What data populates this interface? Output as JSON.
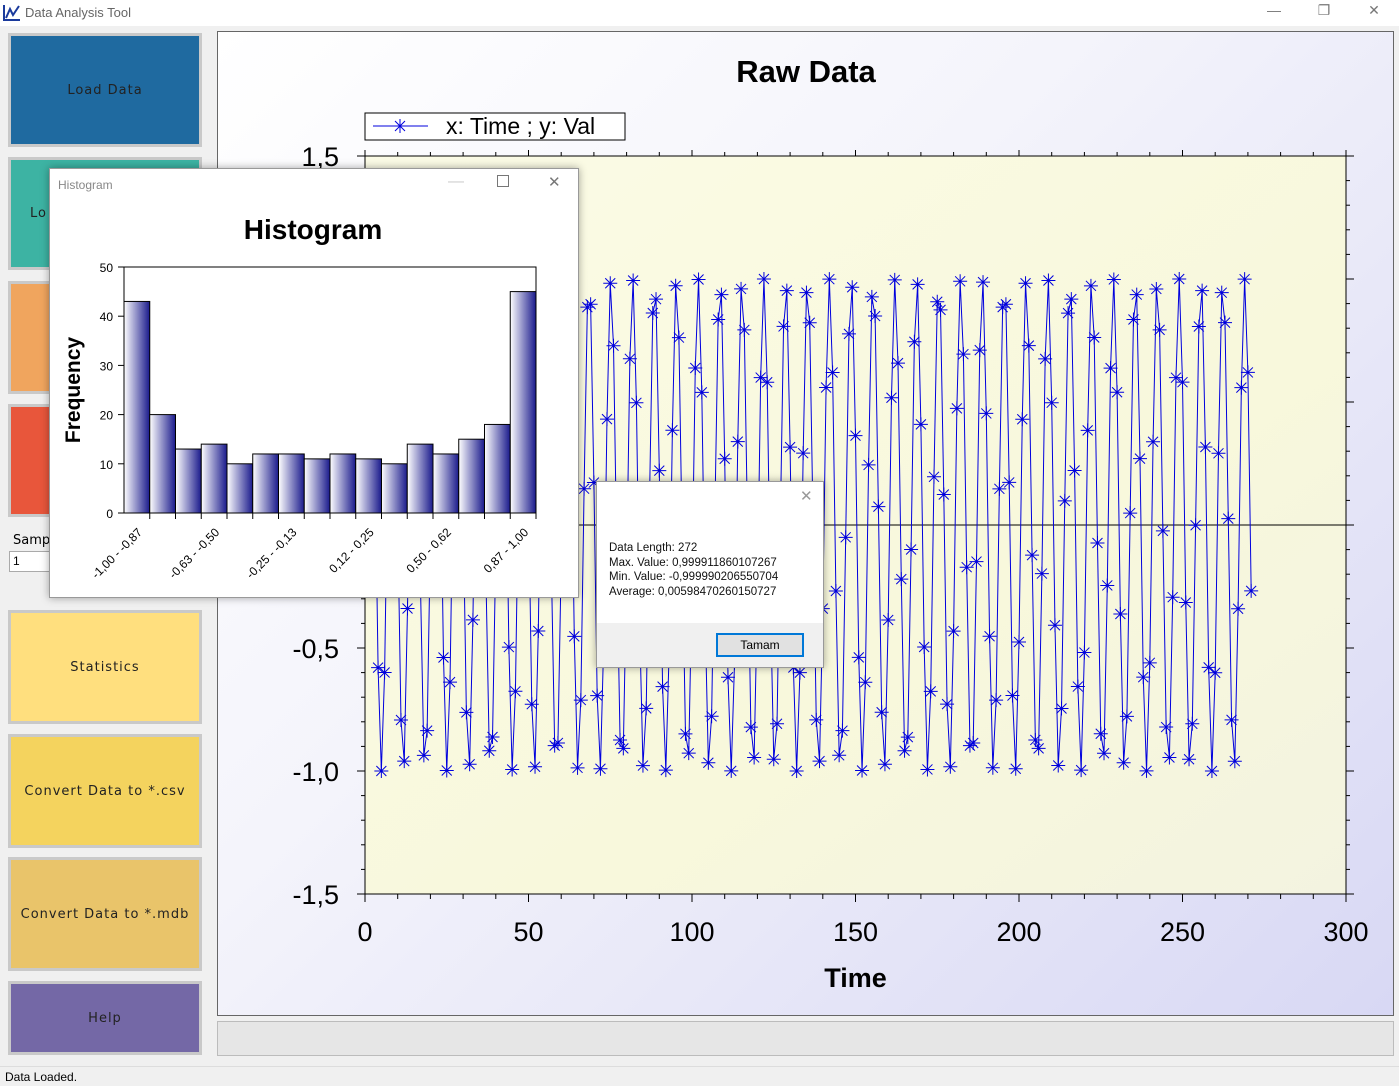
{
  "window": {
    "title": "Data Analysis Tool",
    "minimize": "—",
    "restore": "❐",
    "close": "✕"
  },
  "sidebar": {
    "load_data": "Load Data",
    "teal_button_visible": "Lo",
    "sample_label_visible": "Samp",
    "sample_value": "1",
    "statistics": "Statistics",
    "convert_csv": "Convert Data to *.csv",
    "convert_mdb": "Convert Data to *.mdb",
    "help": "Help",
    "colors": {
      "load": "#1f6aa0",
      "teal": "#3db3a3",
      "orange": "#f0a55e",
      "red": "#e8563b",
      "stats": "#ffdf7e",
      "csv": "#f4d35e",
      "mdb": "#e9c46a",
      "help": "#7468a6"
    }
  },
  "status": {
    "text": "Data Loaded.",
    "progress": 0
  },
  "chart_data": [
    {
      "type": "line",
      "title": "Raw Data",
      "legend": "x: Time ; y: Val",
      "legend_placement": "top-left",
      "xlabel": "Time",
      "ylabel": "",
      "xlim": [
        0,
        300
      ],
      "ylim": [
        -1.5,
        1.5
      ],
      "xticks": [
        "0",
        "50",
        "100",
        "150",
        "200",
        "250",
        "300"
      ],
      "yticks": [
        "1,5",
        "1,0",
        "0,5",
        "0,0",
        "-0,5",
        "-1,0",
        "-1,5"
      ],
      "n_points": 272,
      "signal": {
        "amplitude": 1,
        "radians_per_sample": 0.94,
        "phase": 0
      },
      "color": "#0000dd",
      "marker": "asterisk"
    },
    {
      "type": "bar",
      "title": "Histogram",
      "ylabel": "Frequency",
      "ylim": [
        0,
        50
      ],
      "yticks": [
        "0",
        "10",
        "20",
        "30",
        "40",
        "50"
      ],
      "values": [
        43,
        20,
        13,
        14,
        10,
        12,
        12,
        11,
        12,
        11,
        10,
        14,
        12,
        15,
        18,
        45
      ],
      "tick_labels": [
        "-1,00 - -0,87",
        "-0,63 - -0,50",
        "-0,25 - -0,13",
        "0,12 - 0,25",
        "0,50 - 0,62",
        "0,87 - 1,00"
      ],
      "color": "#1a1a8c"
    }
  ],
  "histogram_window": {
    "title": "Histogram"
  },
  "stats_dialog": {
    "lines": [
      "Data Length: 272",
      "Max. Value: 0,999911860107267",
      "Min. Value: -0,999990206550704",
      "Average: 0,00598470260150727"
    ],
    "ok": "Tamam",
    "close": "✕"
  }
}
